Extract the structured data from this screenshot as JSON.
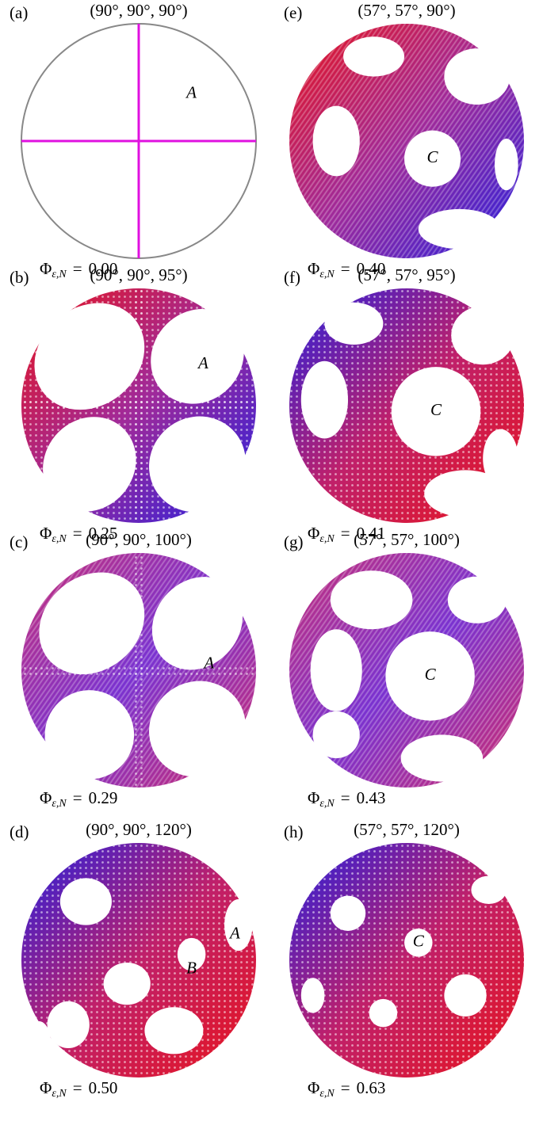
{
  "phi_symbol": "Φ",
  "phi_subscript": "ε,N",
  "equals": "=",
  "panels": [
    {
      "label": "(a)",
      "title": "(90°, 90°, 90°)",
      "phi": "0.00",
      "regions": [
        "A"
      ]
    },
    {
      "label": "(b)",
      "title": "(90°, 90°, 95°)",
      "phi": "0.25",
      "regions": [
        "A"
      ]
    },
    {
      "label": "(c)",
      "title": "(90°, 90°, 100°)",
      "phi": "0.29",
      "regions": [
        "A"
      ]
    },
    {
      "label": "(d)",
      "title": "(90°, 90°, 120°)",
      "phi": "0.50",
      "regions": [
        "A",
        "B"
      ]
    },
    {
      "label": "(e)",
      "title": "(57°, 57°, 90°)",
      "phi": "0.40",
      "regions": [
        "C"
      ]
    },
    {
      "label": "(f)",
      "title": "(57°, 57°, 95°)",
      "phi": "0.41",
      "regions": [
        "C"
      ]
    },
    {
      "label": "(g)",
      "title": "(57°, 57°, 100°)",
      "phi": "0.43",
      "regions": [
        "C"
      ]
    },
    {
      "label": "(h)",
      "title": "(57°, 57°, 120°)",
      "phi": "0.63",
      "regions": [
        "C"
      ]
    }
  ]
}
